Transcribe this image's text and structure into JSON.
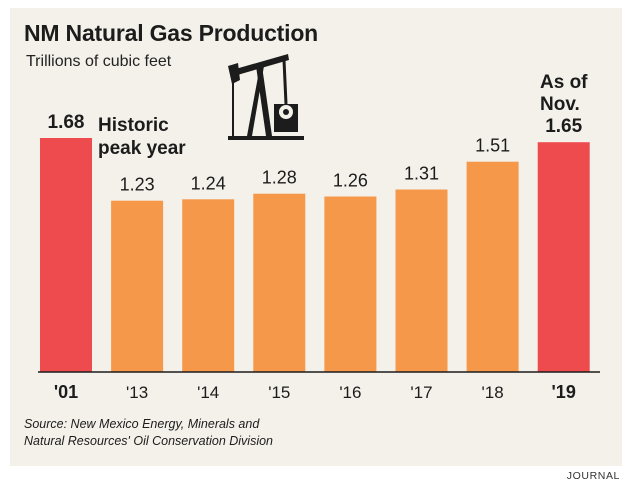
{
  "header": {
    "title": "NM Natural Gas Production",
    "subtitle": "Trillions of cubic feet"
  },
  "annotations": {
    "peak_line1": "Historic",
    "peak_line2": "peak year",
    "asof_line1": "As of",
    "asof_line2": "Nov."
  },
  "footer": {
    "source_line1": "Source: New Mexico Energy, Minerals and",
    "source_line2": "Natural Resources' Oil Conservation Division",
    "credit": "JOURNAL"
  },
  "icons": {
    "pump": "oil-pumpjack-icon"
  },
  "colors": {
    "background": "#f4f1ea",
    "highlight_bar": "#ee4b4e",
    "regular_bar": "#f5984a",
    "baseline": "#1c1c1c"
  },
  "chart_data": {
    "type": "bar",
    "categories": [
      "'01",
      "'13",
      "'14",
      "'15",
      "'16",
      "'17",
      "'18",
      "'19"
    ],
    "values": [
      1.68,
      1.23,
      1.24,
      1.28,
      1.26,
      1.31,
      1.51,
      1.65
    ],
    "value_labels": [
      "1.68",
      "1.23",
      "1.24",
      "1.28",
      "1.26",
      "1.31",
      "1.51",
      "1.65"
    ],
    "highlighted": [
      true,
      false,
      false,
      false,
      false,
      false,
      false,
      true
    ],
    "title": "NM Natural Gas Production",
    "ylabel": "Trillions of cubic feet",
    "xlabel": "",
    "ylim": [
      0,
      1.68
    ],
    "grid": false,
    "legend": "none"
  }
}
